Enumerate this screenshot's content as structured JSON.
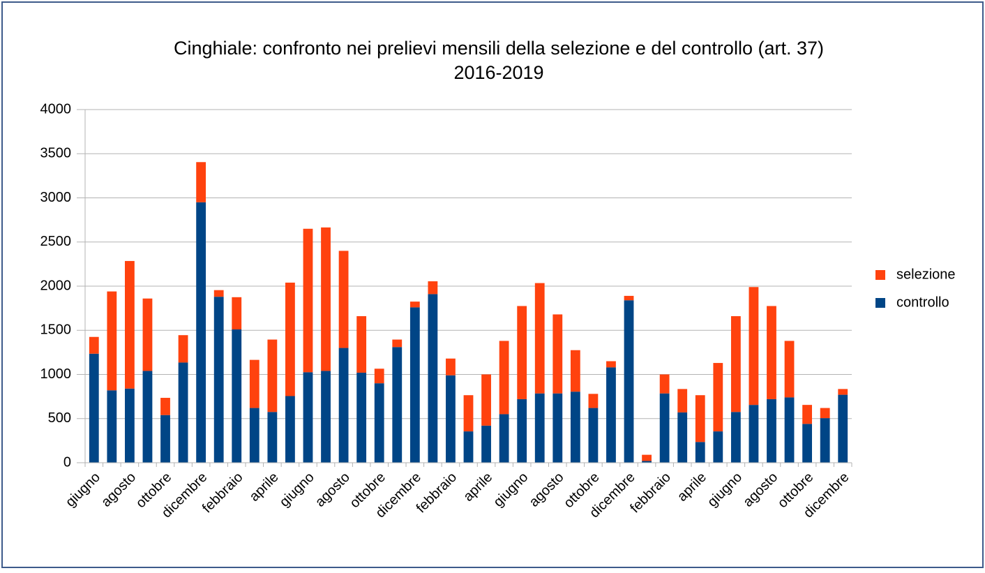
{
  "chart_data": {
    "type": "stacked_bar",
    "title": "Cinghiale: confronto nei prelievi mensili della selezione e del controllo (art. 37)",
    "subtitle": "2016-2019",
    "categories": [
      "giugno",
      null,
      "agosto",
      null,
      "ottobre",
      null,
      "dicembre",
      null,
      "febbraio",
      null,
      "aprile",
      null,
      "giugno",
      null,
      "agosto",
      null,
      "ottobre",
      null,
      "dicembre",
      null,
      "febbraio",
      null,
      "aprile",
      null,
      "giugno",
      null,
      "agosto",
      null,
      "ottobre",
      null,
      "dicembre",
      null,
      "febbraio",
      null,
      "aprile",
      null,
      "giugno",
      null,
      "agosto",
      null,
      "ottobre",
      null,
      "dicembre"
    ],
    "series": [
      {
        "name": "controllo",
        "color": "#004586",
        "values": [
          1235,
          820,
          840,
          1040,
          540,
          1135,
          2950,
          1880,
          1510,
          620,
          575,
          755,
          1025,
          1040,
          1300,
          1020,
          900,
          1310,
          1760,
          1910,
          990,
          355,
          420,
          550,
          720,
          785,
          785,
          805,
          620,
          1080,
          1840,
          20,
          785,
          570,
          235,
          355,
          575,
          655,
          720,
          740,
          440,
          505,
          770
        ]
      },
      {
        "name": "selezione",
        "color": "#ff420e",
        "values": [
          190,
          1120,
          1445,
          820,
          195,
          310,
          455,
          75,
          365,
          545,
          820,
          1285,
          1625,
          1625,
          1100,
          640,
          165,
          85,
          65,
          145,
          190,
          410,
          580,
          830,
          1055,
          1250,
          895,
          470,
          160,
          70,
          50,
          70,
          215,
          265,
          530,
          775,
          1085,
          1335,
          1055,
          640,
          215,
          115,
          65
        ]
      }
    ],
    "ylim": [
      0,
      4000
    ],
    "yticks": [
      0,
      500,
      1000,
      1500,
      2000,
      2500,
      3000,
      3500,
      4000
    ],
    "grid": true,
    "legend": "right"
  }
}
